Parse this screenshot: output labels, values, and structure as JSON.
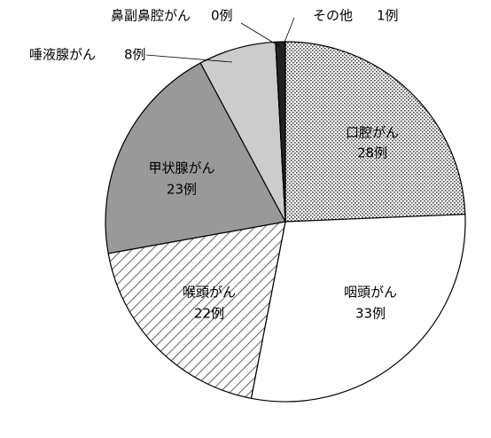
{
  "chart_data": {
    "type": "pie",
    "categories": [
      "口腔がん",
      "咽頭がん",
      "喉頭がん",
      "甲状腺がん",
      "唾液腺がん",
      "鼻副鼻腔がん",
      "その他"
    ],
    "values": [
      28,
      33,
      22,
      23,
      8,
      0,
      1
    ],
    "value_labels": [
      "28例",
      "33例",
      "22例",
      "23例",
      "8例",
      "0例",
      "1例"
    ],
    "colors": [
      "url(#dots)",
      "#ffffff",
      "url(#hatch)",
      "#999999",
      "#cccccc",
      "#ffffff",
      "#222222"
    ]
  }
}
